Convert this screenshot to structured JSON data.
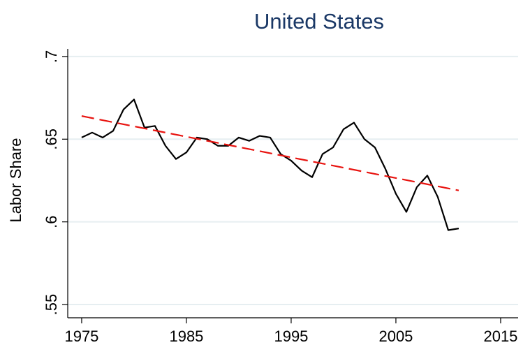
{
  "chart_data": {
    "type": "line",
    "title": "United States",
    "y_label": "Labor Share",
    "xlim": [
      1973.67,
      2016.67
    ],
    "xticks": [
      1975,
      1985,
      1995,
      2005,
      2015
    ],
    "ylim": [
      0.542,
      0.7046
    ],
    "yticks": [
      {
        "value": 0.55,
        "label": ".55"
      },
      {
        "value": 0.6,
        "label": ".6"
      },
      {
        "value": 0.65,
        "label": ".65"
      },
      {
        "value": 0.7,
        "label": ".7"
      }
    ],
    "grid": true,
    "series": [
      {
        "color": "#000000",
        "dash": false,
        "x": [
          1975,
          1976,
          1977,
          1978,
          1979,
          1980,
          1981,
          1982,
          1983,
          1984,
          1985,
          1986,
          1987,
          1988,
          1989,
          1990,
          1991,
          1992,
          1993,
          1994,
          1995,
          1996,
          1997,
          1998,
          1999,
          2000,
          2001,
          2002,
          2003,
          2004,
          2005,
          2006,
          2007,
          2008,
          2009,
          2010,
          2011
        ],
        "values": [
          0.651,
          0.654,
          0.651,
          0.655,
          0.668,
          0.674,
          0.657,
          0.658,
          0.646,
          0.638,
          0.642,
          0.651,
          0.65,
          0.646,
          0.646,
          0.651,
          0.649,
          0.652,
          0.651,
          0.641,
          0.637,
          0.631,
          0.627,
          0.641,
          0.645,
          0.656,
          0.66,
          0.65,
          0.645,
          0.632,
          0.617,
          0.606,
          0.621,
          0.628,
          0.615,
          0.595,
          0.596
        ]
      },
      {
        "color": "#e8130f",
        "dash": true,
        "x": [
          1975,
          2011
        ],
        "values": [
          0.664,
          0.619
        ]
      }
    ]
  }
}
